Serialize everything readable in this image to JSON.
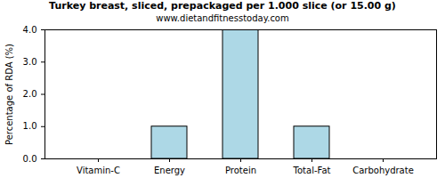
{
  "chart_data": {
    "type": "bar",
    "title": "Turkey breast, sliced, prepackaged per 1.000 slice (or 15.00 g)",
    "subtitle": "www.dietandfitnesstoday.com",
    "y_label": "Percentage of RDA (%)",
    "categories": [
      "Vitamin-C",
      "Energy",
      "Protein",
      "Total-Fat",
      "Carbohydrate"
    ],
    "values": [
      0,
      1,
      4,
      1,
      0
    ],
    "color": "#add8e6",
    "ylim": [
      0,
      4
    ],
    "yticks": [
      {
        "value": 0,
        "label": "0.0"
      },
      {
        "value": 1,
        "label": "1.0"
      },
      {
        "value": 2,
        "label": "2.0"
      },
      {
        "value": 3,
        "label": "3.0"
      },
      {
        "value": 4,
        "label": "4.0"
      }
    ],
    "grid": false
  }
}
